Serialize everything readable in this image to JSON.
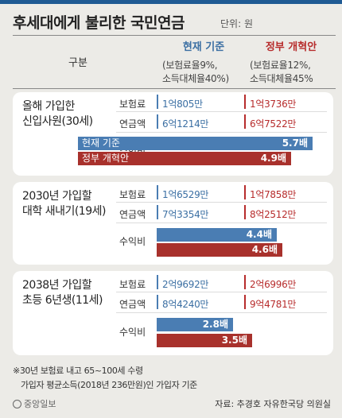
{
  "title": "후세대에게 불리한 국민연금",
  "unit": "단위: 원",
  "header": {
    "gubun": "구분",
    "current": {
      "label": "현재 기준",
      "sub1": "(보험료율9%,",
      "sub2": "소득대체율40%)"
    },
    "government": {
      "label": "정부 개혁안",
      "sub1": "(보험료율12%,",
      "sub2": "소득대체율45%"
    }
  },
  "row_labels": {
    "premium": "보험료",
    "pension": "연금액",
    "ratio": "수익비"
  },
  "bar_names": {
    "current": "현재 기준",
    "government": "정부 개혁안"
  },
  "colors": {
    "current": "#4a7db3",
    "government": "#a8312c",
    "title_bar": "#1f5a93"
  },
  "chart_data": {
    "type": "bar",
    "categories": [
      "올해 가입한 신입사원(30세)",
      "2030년 가입할 대학 새내기(19세)",
      "2038년 가입할 초등 6년생(11세)"
    ],
    "series": [
      {
        "name": "현재 기준",
        "values": [
          5.7,
          4.4,
          2.8
        ]
      },
      {
        "name": "정부 개혁안",
        "values": [
          4.9,
          4.6,
          3.5
        ]
      }
    ],
    "ylim": [
      0,
      6
    ],
    "groups": [
      {
        "label_line1": "올해 가입한",
        "label_line2": "신입사원(30세)",
        "current": {
          "premium": "1억805만",
          "pension": "6억1214만",
          "ratio": 5.7,
          "ratio_text": "5.7배"
        },
        "government": {
          "premium": "1억3736만",
          "pension": "6억7522만",
          "ratio": 4.9,
          "ratio_text": "4.9배"
        }
      },
      {
        "label_line1": "2030년 가입할",
        "label_line2": "대학 새내기(19세)",
        "current": {
          "premium": "1억6529만",
          "pension": "7억3354만",
          "ratio": 4.4,
          "ratio_text": "4.4배"
        },
        "government": {
          "premium": "1억7858만",
          "pension": "8억2512만",
          "ratio": 4.6,
          "ratio_text": "4.6배"
        }
      },
      {
        "label_line1": "2038년 가입할",
        "label_line2": "초등 6년생(11세)",
        "current": {
          "premium": "2억9692만",
          "pension": "8억4240만",
          "ratio": 2.8,
          "ratio_text": "2.8배"
        },
        "government": {
          "premium": "2억6996만",
          "pension": "9억4781만",
          "ratio": 3.5,
          "ratio_text": "3.5배"
        }
      }
    ]
  },
  "footnote1": "※30년 보험료 내고 65~100세 수령",
  "footnote2": "가입자 평균소득(2018년 236만원)인 가입자 기준",
  "logo": "중앙일보",
  "source": "자료: 추경호 자유한국당 의원실"
}
